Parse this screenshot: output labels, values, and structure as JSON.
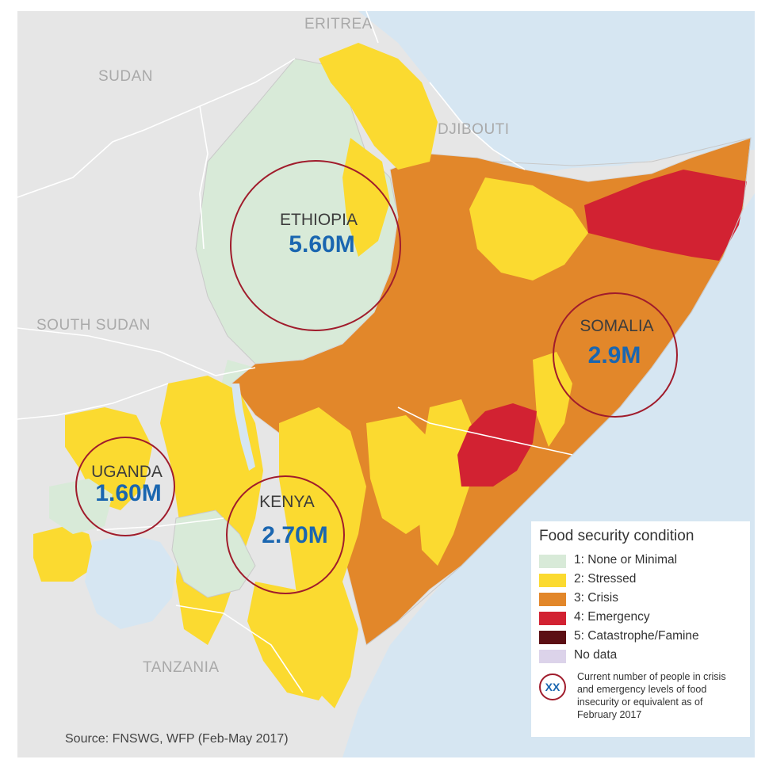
{
  "map": {
    "country_labels": {
      "eritrea": "ERITREA",
      "sudan": "SUDAN",
      "djibouti": "DJIBOUTI",
      "south_sudan": "SOUTH SUDAN",
      "tanzania": "TANZANIA"
    },
    "stat_circles": [
      {
        "country": "ETHIOPIA",
        "value": "5.60M"
      },
      {
        "country": "SOMALIA",
        "value": "2.9M"
      },
      {
        "country": "UGANDA",
        "value": "1.60M"
      },
      {
        "country": "KENYA",
        "value": "2.70M"
      }
    ],
    "colors": {
      "background_land": "#e6e6e6",
      "sea": "#d6e6f2",
      "phase1": "#d8ead8",
      "phase2": "#fbda30",
      "phase3": "#e2872a",
      "phase4": "#d22232",
      "phase5": "#5c0f14",
      "no_data": "#dcd3ea",
      "circle": "#a01c2c",
      "value_text": "#1a66b0"
    }
  },
  "legend": {
    "title": "Food security condition",
    "items": [
      {
        "label": "1: None or Minimal",
        "color": "#d8ead8"
      },
      {
        "label": "2: Stressed",
        "color": "#fbda30"
      },
      {
        "label": "3: Crisis",
        "color": "#e2872a"
      },
      {
        "label": "4: Emergency",
        "color": "#d22232"
      },
      {
        "label": "5: Catastrophe/Famine",
        "color": "#5c0f14"
      },
      {
        "label": "No data",
        "color": "#dcd3ea"
      }
    ],
    "circle_symbol": "XX",
    "circle_note": "Current number of people in crisis and emergency levels of food insecurity or equivalent as of February 2017"
  },
  "source": "Source: FNSWG, WFP (Feb-May 2017)"
}
